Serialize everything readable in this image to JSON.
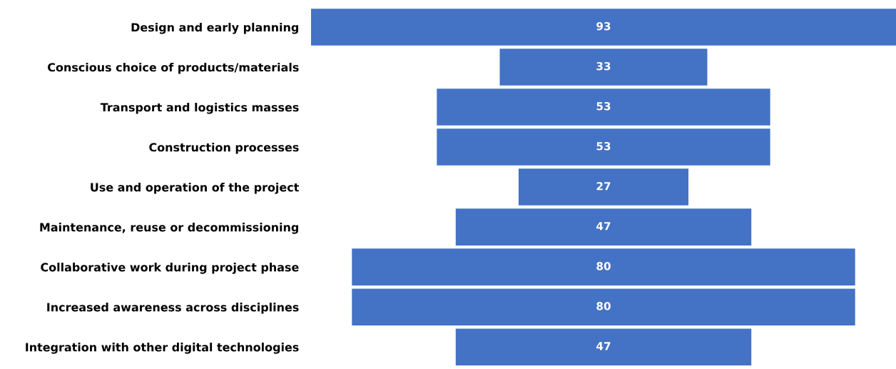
{
  "chart_data": {
    "type": "other",
    "categories": [
      "Design and early planning",
      "Conscious choice of products/materials",
      "Transport and logistics masses",
      "Construction processes",
      "Use and operation of the project",
      "Maintenance, reuse or decommissioning",
      "Collaborative work during project phase",
      "Increased awareness across disciplines",
      "Integration with other digital technologies"
    ],
    "values": [
      93,
      33,
      53,
      53,
      27,
      47,
      80,
      80,
      47
    ],
    "color": "#4472c4",
    "data_labels": true
  }
}
